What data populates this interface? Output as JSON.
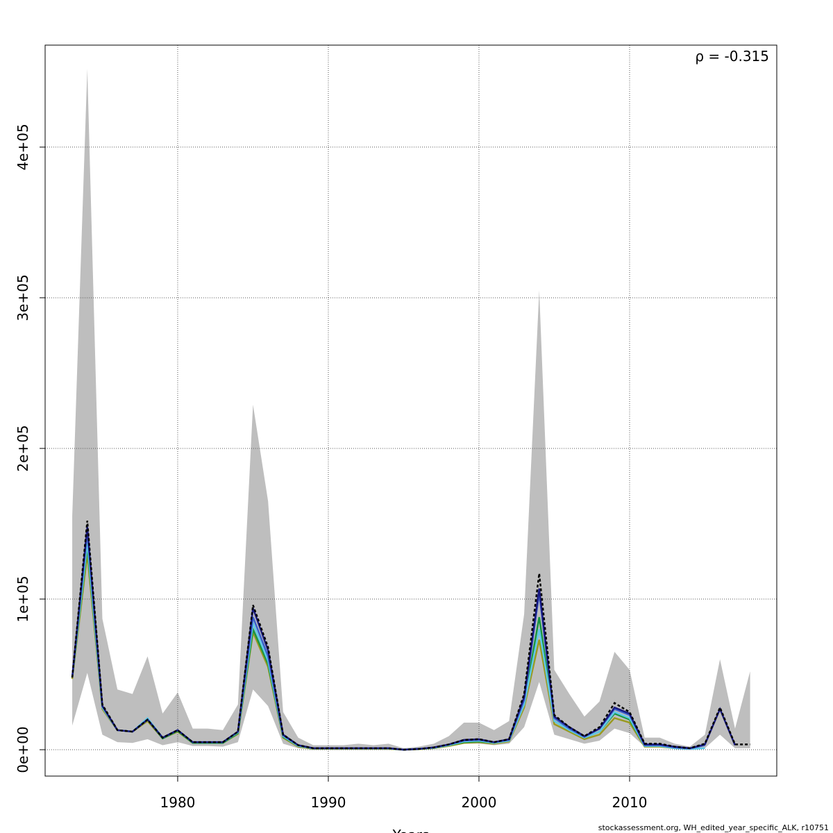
{
  "chart_data": {
    "type": "line",
    "annotation": "ρ = -0.315",
    "xlabel": "Years",
    "footer": "stockassessment.org, WH_edited_year_specific_ALK, r10751",
    "xlim": [
      1971.2,
      2019.77
    ],
    "ylim": [
      -17500,
      467700
    ],
    "xticks": [
      1980,
      1990,
      2000,
      2010
    ],
    "yticks": [
      {
        "value": 0,
        "label": "0e+00"
      },
      {
        "value": 100000,
        "label": "1e+05"
      },
      {
        "value": 200000,
        "label": "2e+05"
      },
      {
        "value": 300000,
        "label": "3e+05"
      },
      {
        "value": 400000,
        "label": "4e+05"
      }
    ],
    "grid": true,
    "x": [
      1973,
      1974,
      1975,
      1976,
      1977,
      1978,
      1979,
      1980,
      1981,
      1982,
      1983,
      1984,
      1985,
      1986,
      1987,
      1988,
      1989,
      1990,
      1991,
      1992,
      1993,
      1994,
      1995,
      1996,
      1997,
      1998,
      1999,
      2000,
      2001,
      2002,
      2003,
      2004,
      2005,
      2006,
      2007,
      2008,
      2009,
      2010,
      2011,
      2012,
      2013,
      2014,
      2015,
      2016,
      2017,
      2018
    ],
    "band": {
      "color": "#bebebe",
      "upper": [
        155000,
        452000,
        87000,
        40000,
        37000,
        62000,
        24000,
        38000,
        14000,
        14000,
        13000,
        30000,
        229000,
        165000,
        25000,
        8000,
        3000,
        3000,
        3000,
        4000,
        3000,
        4000,
        1000,
        2000,
        4000,
        9000,
        18000,
        18000,
        13000,
        19000,
        90000,
        305000,
        53000,
        37000,
        22000,
        32000,
        65000,
        53000,
        8000,
        8000,
        4000,
        2000,
        10000,
        60000,
        14000,
        52000
      ],
      "lower": [
        16000,
        51000,
        10000,
        5000,
        4500,
        7000,
        3000,
        5000,
        2500,
        2500,
        2000,
        5000,
        40000,
        29000,
        4000,
        1000,
        300,
        300,
        300,
        300,
        300,
        300,
        0,
        300,
        800,
        2000,
        4000,
        4000,
        3000,
        4000,
        15000,
        45000,
        10000,
        7000,
        4000,
        6000,
        14000,
        11000,
        2000,
        2000,
        1000,
        400,
        1000,
        10000,
        1000,
        1000
      ]
    },
    "series": [
      {
        "color": "#000000",
        "dashed": true,
        "values": [
          48000,
          152000,
          30000,
          13000,
          12000,
          20000,
          8000,
          13000,
          5000,
          5000,
          5000,
          12000,
          96000,
          68000,
          10000,
          3000,
          1000,
          1000,
          1000,
          1000,
          1000,
          1000,
          0,
          500,
          1500,
          3500,
          6500,
          7000,
          5000,
          7000,
          37000,
          117000,
          23000,
          15000,
          9000,
          15000,
          31000,
          25000,
          4000,
          4000,
          2000,
          1000,
          4000,
          28000,
          3500,
          3500
        ]
      },
      {
        "color": "#1a1a80",
        "values": [
          48000,
          148000,
          29000,
          13000,
          12000,
          20000,
          8000,
          13000,
          5000,
          5000,
          5000,
          12000,
          94000,
          66000,
          10000,
          3000,
          1000,
          1000,
          1000,
          1000,
          1000,
          1000,
          0,
          500,
          1500,
          3500,
          6500,
          7000,
          5000,
          7000,
          35000,
          107000,
          22000,
          15000,
          9000,
          14000,
          28000,
          24000,
          3500,
          3500,
          2000,
          1000,
          3500,
          27000,
          3000,
          null
        ]
      },
      {
        "color": "#3a5fcd",
        "values": [
          48000,
          145000,
          29000,
          13000,
          12000,
          20000,
          8000,
          13000,
          5000,
          5000,
          5000,
          12000,
          88000,
          62000,
          9500,
          3000,
          1000,
          1000,
          1000,
          1000,
          1000,
          1000,
          0,
          500,
          1500,
          3500,
          6000,
          6500,
          5000,
          6500,
          33000,
          104000,
          21000,
          14000,
          8500,
          14000,
          27000,
          23000,
          3000,
          3000,
          1500,
          800,
          3000,
          null,
          null,
          null
        ]
      },
      {
        "color": "#5fc8e8",
        "values": [
          48000,
          138000,
          28000,
          13000,
          12000,
          21000,
          8000,
          13000,
          5000,
          5000,
          5000,
          11500,
          84000,
          59000,
          9000,
          2500,
          800,
          800,
          800,
          800,
          800,
          800,
          0,
          500,
          1200,
          3000,
          5500,
          6000,
          4500,
          6000,
          30000,
          80000,
          19000,
          13000,
          8000,
          12000,
          25000,
          21000,
          2500,
          2500,
          1000,
          500,
          1000,
          null,
          null,
          null
        ]
      },
      {
        "color": "#1a9641",
        "values": [
          48000,
          135000,
          28000,
          13000,
          12000,
          20000,
          7500,
          12500,
          4500,
          4500,
          4500,
          11000,
          80000,
          57000,
          8500,
          2500,
          800,
          800,
          800,
          800,
          800,
          800,
          0,
          500,
          1200,
          3000,
          5000,
          5500,
          4500,
          6000,
          31000,
          88000,
          19000,
          13000,
          8000,
          12000,
          24000,
          20000,
          2500,
          2500,
          1000,
          500,
          null,
          null,
          null,
          null
        ]
      },
      {
        "color": "#9a9a20",
        "values": [
          47000,
          130000,
          27000,
          13000,
          12000,
          19000,
          7500,
          12000,
          4500,
          4500,
          4500,
          10500,
          78000,
          55000,
          8000,
          2000,
          500,
          500,
          500,
          500,
          500,
          500,
          0,
          300,
          1000,
          2500,
          4500,
          5000,
          4000,
          5500,
          28000,
          73000,
          17000,
          12000,
          7000,
          10000,
          21000,
          18000,
          2000,
          2000,
          1000,
          null,
          null,
          null,
          null,
          null
        ]
      }
    ]
  }
}
